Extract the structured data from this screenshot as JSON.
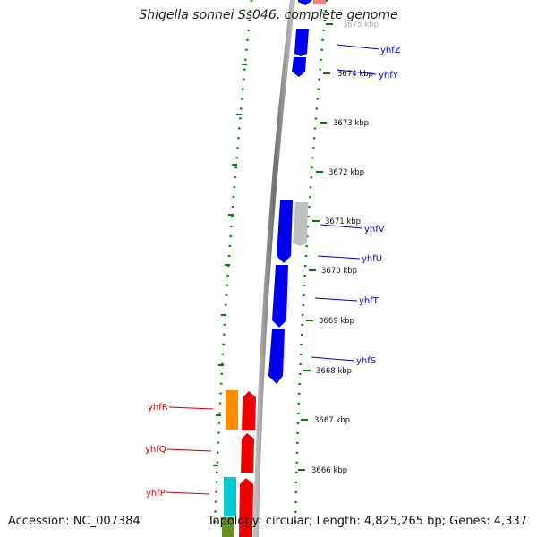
{
  "title": "Shigella sonnei Ss046, complete genome",
  "footer": {
    "accession": "Accession: NC_007384",
    "summary": "Topology: circular; Length: 4,825,265 bp; Genes: 4,337"
  },
  "scale_labels": [
    "3675 kbp",
    "3674 kbp",
    "3673 kbp",
    "3672 kbp",
    "3671 kbp",
    "3670 kbp",
    "3669 kbp",
    "3668 kbp",
    "3667 kbp",
    "3666 kbp"
  ],
  "genes_plus_strand": [
    "yhfZ",
    "yhfY",
    "yhfV",
    "yhfU",
    "yhfT",
    "yhfS"
  ],
  "genes_minus_strand": [
    "yhfR",
    "yhfQ",
    "yhfP"
  ],
  "colors": {
    "plus_label": "#0000cc",
    "minus_label": "#cc0000",
    "gene_blue": "#0000ee",
    "gene_red": "#ee0000",
    "gene_orange": "#ff8c00",
    "gene_grey": "#c0c0c0",
    "gene_cyan": "#00c8d2",
    "gene_olive": "#6b8e23",
    "gene_pink": "#f08080",
    "backbone": "#888888",
    "ticks": "#008000"
  }
}
